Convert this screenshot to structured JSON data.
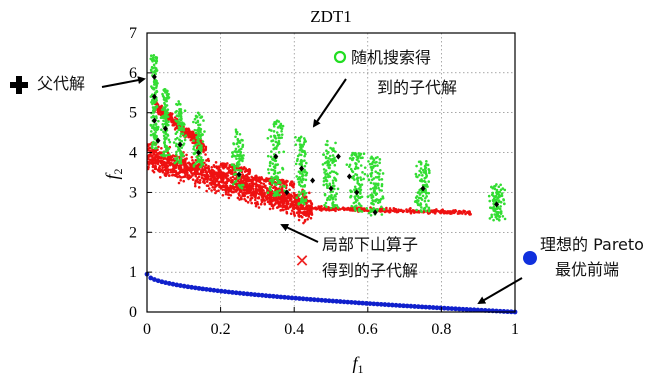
{
  "chart_data": {
    "type": "scatter",
    "title": "ZDT1",
    "xlabel": "f",
    "xlabel_sub": "1",
    "ylabel": "f",
    "ylabel_sub": "2",
    "xlim": [
      0,
      1
    ],
    "ylim": [
      0,
      7
    ],
    "xticks": [
      0,
      0.2,
      0.4,
      0.6,
      0.8,
      1
    ],
    "xtick_labels": [
      "0",
      "0.2",
      "0.4",
      "0.6",
      "0.8",
      "1"
    ],
    "yticks": [
      0,
      1,
      2,
      3,
      4,
      5,
      6,
      7
    ],
    "ytick_labels": [
      "0",
      "1",
      "2",
      "3",
      "4",
      "5",
      "6",
      "7"
    ],
    "grid": true,
    "colors": {
      "parent": "#000000",
      "random_search": "#33dd33",
      "local_search": "#ee1111",
      "pareto": "#1020cc"
    },
    "series": [
      {
        "key": "random_search",
        "marker": "dot",
        "clusters": [
          {
            "x": 0.02,
            "y_range": [
              4.1,
              6.5
            ],
            "spread_x": 0.015,
            "n": 140
          },
          {
            "x": 0.05,
            "y_range": [
              3.9,
              5.6
            ],
            "spread_x": 0.015,
            "n": 110
          },
          {
            "x": 0.09,
            "y_range": [
              3.7,
              5.3
            ],
            "spread_x": 0.02,
            "n": 100
          },
          {
            "x": 0.14,
            "y_range": [
              3.6,
              5.0
            ],
            "spread_x": 0.02,
            "n": 90
          },
          {
            "x": 0.25,
            "y_range": [
              3.1,
              4.6
            ],
            "spread_x": 0.025,
            "n": 90
          },
          {
            "x": 0.35,
            "y_range": [
              2.9,
              4.8
            ],
            "spread_x": 0.03,
            "n": 130
          },
          {
            "x": 0.42,
            "y_range": [
              2.7,
              4.4
            ],
            "spread_x": 0.025,
            "n": 110
          },
          {
            "x": 0.5,
            "y_range": [
              2.6,
              4.3
            ],
            "spread_x": 0.03,
            "n": 120
          },
          {
            "x": 0.57,
            "y_range": [
              2.5,
              4.0
            ],
            "spread_x": 0.03,
            "n": 110
          },
          {
            "x": 0.62,
            "y_range": [
              2.4,
              3.9
            ],
            "spread_x": 0.03,
            "n": 110
          },
          {
            "x": 0.75,
            "y_range": [
              2.5,
              3.8
            ],
            "spread_x": 0.03,
            "n": 100
          },
          {
            "x": 0.95,
            "y_range": [
              2.3,
              3.2
            ],
            "spread_x": 0.03,
            "n": 100
          }
        ]
      },
      {
        "key": "local_search",
        "marker": "dot",
        "bands": [
          {
            "x_range": [
              0.0,
              0.45
            ],
            "y_start": 3.9,
            "y_end": 2.6,
            "thickness": 0.8,
            "n": 1400
          },
          {
            "x_range": [
              0.02,
              0.16
            ],
            "y_start": 5.2,
            "y_end": 4.1,
            "thickness": 0.35,
            "n": 350
          },
          {
            "x_range": [
              0.2,
              0.28
            ],
            "y_start": 3.7,
            "y_end": 3.55,
            "thickness": 0.15,
            "n": 80
          },
          {
            "x_range": [
              0.25,
              0.4
            ],
            "y_start": 3.4,
            "y_end": 3.2,
            "thickness": 0.18,
            "n": 120
          },
          {
            "x_range": [
              0.45,
              0.88
            ],
            "y_start": 2.6,
            "y_end": 2.5,
            "thickness": 0.12,
            "n": 300
          }
        ]
      },
      {
        "key": "parent",
        "marker": "diamond",
        "points": [
          [
            0.02,
            5.9
          ],
          [
            0.02,
            5.4
          ],
          [
            0.02,
            4.8
          ],
          [
            0.03,
            4.3
          ],
          [
            0.05,
            4.6
          ],
          [
            0.09,
            4.2
          ],
          [
            0.14,
            4.0
          ],
          [
            0.25,
            3.45
          ],
          [
            0.35,
            3.9
          ],
          [
            0.38,
            3.0
          ],
          [
            0.42,
            3.6
          ],
          [
            0.45,
            3.3
          ],
          [
            0.5,
            3.1
          ],
          [
            0.52,
            3.9
          ],
          [
            0.55,
            3.4
          ],
          [
            0.57,
            3.0
          ],
          [
            0.62,
            2.5
          ],
          [
            0.75,
            3.1
          ],
          [
            0.95,
            2.7
          ]
        ]
      },
      {
        "key": "pareto",
        "marker": "circle",
        "function": "1 - sqrt(x)",
        "x_range": [
          0,
          1
        ],
        "n": 100
      }
    ],
    "annotations": {
      "parent": "父代解",
      "random_line1": "随机搜索得",
      "random_line2": "到的子代解",
      "local_line1": "局部下山算子",
      "local_line2": "得到的子代解",
      "pareto_line1": "理想的 Pareto",
      "pareto_line2": "最优前端"
    }
  }
}
